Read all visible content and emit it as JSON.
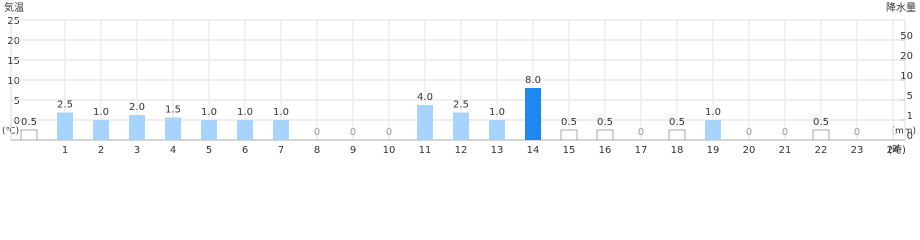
{
  "chart_data": {
    "type": "bar",
    "y_label": "気温",
    "y_unit": "(℃)",
    "y2_label": "降水量",
    "y2_unit": "(mm)",
    "x_unit": "(時)",
    "ylim": [
      -5,
      25
    ],
    "yticks": [
      0,
      5,
      10,
      15,
      20,
      25
    ],
    "y2lim": [
      0,
      50
    ],
    "y2ticks": [
      0,
      1,
      5,
      10,
      20,
      50
    ],
    "y2scale": "piecewise",
    "xlim": [
      0,
      24
    ],
    "xticks": [
      1,
      2,
      3,
      4,
      5,
      6,
      7,
      8,
      9,
      10,
      11,
      12,
      13,
      14,
      15,
      16,
      17,
      18,
      19,
      20,
      21,
      22,
      23,
      24
    ],
    "grid": true,
    "values": [
      0.5,
      2.5,
      1.0,
      2.0,
      1.5,
      1.0,
      1.0,
      1.0,
      0,
      0,
      0,
      4.0,
      2.5,
      1.0,
      8.0,
      0.5,
      0.5,
      0,
      0.5,
      1.0,
      0,
      0,
      0.5,
      0
    ],
    "value_labels": [
      "0.5",
      "2.5",
      "1.0",
      "2.0",
      "1.5",
      "1.0",
      "1.0",
      "1.0",
      "0",
      "0",
      "0",
      "4.0",
      "2.5",
      "1.0",
      "8.0",
      "0.5",
      "0.5",
      "0",
      "0.5",
      "1.0",
      "0",
      "0",
      "0.5",
      "0"
    ],
    "colors": [
      "#ffffff",
      "#a6d4ff",
      "#a6d4ff",
      "#a6d4ff",
      "#a6d4ff",
      "#a6d4ff",
      "#a6d4ff",
      "#a6d4ff",
      "#a6d4ff",
      "#a6d4ff",
      "#a6d4ff",
      "#a6d4ff",
      "#a6d4ff",
      "#a6d4ff",
      "#1e88f0",
      "#ffffff",
      "#ffffff",
      "#a6d4ff",
      "#ffffff",
      "#a6d4ff",
      "#a6d4ff",
      "#a6d4ff",
      "#ffffff",
      "#a6d4ff"
    ]
  }
}
